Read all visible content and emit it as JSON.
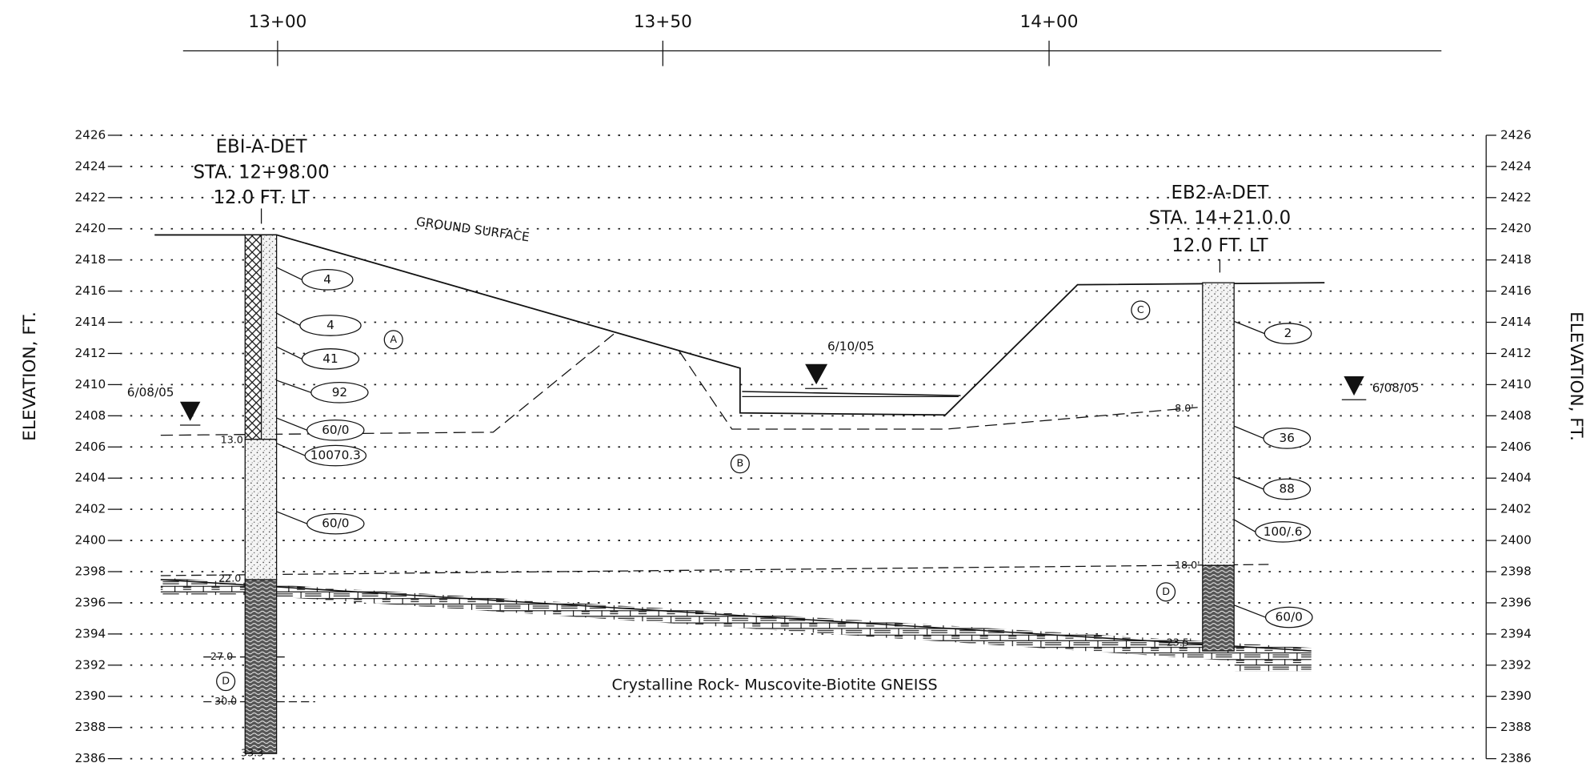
{
  "stations": [
    "13+00",
    "13+50",
    "14+00"
  ],
  "elevation_axis": {
    "label": "ELEVATION, FT.",
    "ticks": [
      2386,
      2388,
      2390,
      2392,
      2394,
      2396,
      2398,
      2400,
      2402,
      2404,
      2406,
      2408,
      2410,
      2412,
      2414,
      2416,
      2418,
      2420,
      2422,
      2424,
      2426
    ]
  },
  "borings": [
    {
      "name": "EBI-A-DET",
      "station": "STA. 12+98.00",
      "offset": "12.0 FT. LT",
      "water_date": "6/08/05",
      "blow_counts": [
        "4",
        "4",
        "41",
        "92",
        "60/0",
        "10070.3",
        "60/0"
      ],
      "depths": [
        "13.0",
        "22.0",
        "27.0",
        "30.0",
        "33.3"
      ]
    },
    {
      "name": "EB2-A-DET",
      "station": "STA. 14+21.0.0",
      "offset": "12.0 FT. LT",
      "water_date": "6/08/05",
      "blow_counts": [
        "2",
        "36",
        "88",
        "100/.6",
        "60/0"
      ],
      "depths": [
        "8.0'",
        "18.0'",
        "23.5'"
      ]
    }
  ],
  "annotations": {
    "ground_surface": "GROUND SURFACE",
    "pond_date": "6/10/05",
    "rock": "Crystalline Rock- Muscovite-Biotite GNEISS"
  },
  "zones": [
    "A",
    "B",
    "C",
    "D",
    "D"
  ]
}
